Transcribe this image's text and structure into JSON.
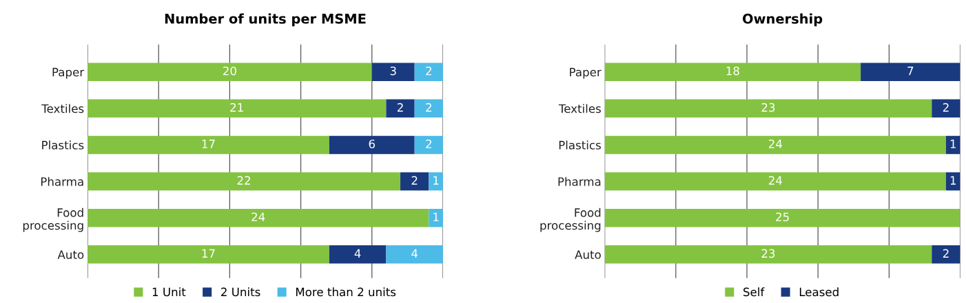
{
  "chart_data": [
    {
      "type": "bar",
      "orientation": "horizontal",
      "stacked": true,
      "title": "Number of units per MSME",
      "categories": [
        "Paper",
        "Textiles",
        "Plastics",
        "Pharma",
        "Food\nprocessing",
        "Auto"
      ],
      "series": [
        {
          "name": "1 Unit",
          "color": "#84c341",
          "values": [
            20,
            21,
            17,
            22,
            24,
            17
          ]
        },
        {
          "name": "2 Units",
          "color": "#1a3a7f",
          "values": [
            3,
            2,
            6,
            2,
            null,
            4
          ]
        },
        {
          "name": "More than 2 units",
          "color": "#4cbbe8",
          "values": [
            2,
            2,
            2,
            1,
            1,
            4
          ]
        }
      ],
      "xlim": [
        0,
        25
      ],
      "xticks": [
        {
          "value": 0,
          "label": null
        },
        {
          "value": 5,
          "label": null
        },
        {
          "value": 10,
          "label": null
        },
        {
          "value": 15,
          "label": null
        },
        {
          "value": 20,
          "label": null
        },
        {
          "value": 25,
          "label": null
        }
      ],
      "grid": "x",
      "legend": "bottom",
      "data_labels": true,
      "tick_labels": "y"
    },
    {
      "type": "bar",
      "orientation": "horizontal",
      "stacked": true,
      "title": "Ownership",
      "categories": [
        "Paper",
        "Textiles",
        "Plastics",
        "Pharma",
        "Food\nprocessing",
        "Auto"
      ],
      "series": [
        {
          "name": "Self",
          "color": "#84c341",
          "values": [
            18,
            23,
            24,
            24,
            25,
            23
          ]
        },
        {
          "name": "Leased",
          "color": "#1a3a7f",
          "values": [
            7,
            2,
            1,
            1,
            null,
            2
          ]
        }
      ],
      "xlim": [
        0,
        25
      ],
      "xticks": [
        {
          "value": 0,
          "label": null
        },
        {
          "value": 5,
          "label": null
        },
        {
          "value": 10,
          "label": null
        },
        {
          "value": 15,
          "label": null
        },
        {
          "value": 20,
          "label": null
        },
        {
          "value": 25,
          "label": null
        }
      ],
      "grid": "x",
      "legend": "bottom",
      "data_labels": true,
      "tick_labels": "y"
    }
  ]
}
